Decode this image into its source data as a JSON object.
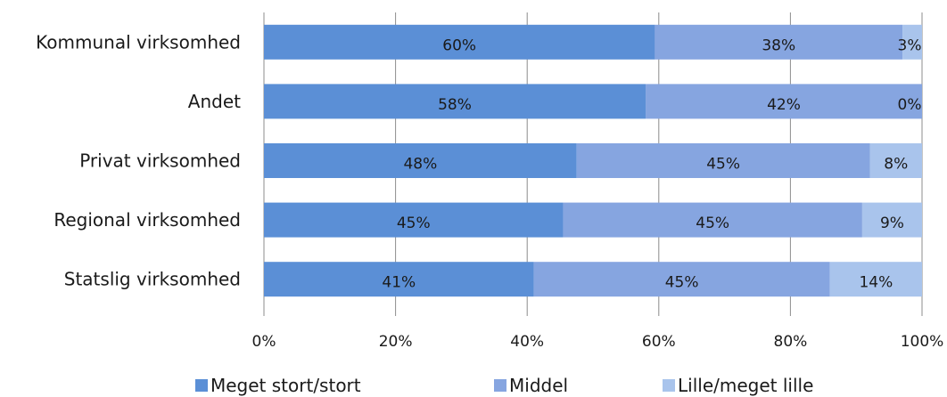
{
  "chart_data": {
    "type": "bar",
    "orientation": "horizontal",
    "stacked": "percent",
    "categories": [
      "Kommunal virksomhed",
      "Andet",
      "Privat virksomhed",
      "Regional virksomhed",
      "Statslig virksomhed"
    ],
    "series": [
      {
        "name": "Meget stort/stort",
        "color": "#5b8fd6",
        "values": [
          60,
          58,
          48,
          45,
          41
        ],
        "labels": [
          "60%",
          "58%",
          "48%",
          "45%",
          "41%"
        ]
      },
      {
        "name": "Middel",
        "color": "#86a5e0",
        "values": [
          38,
          42,
          45,
          45,
          45
        ],
        "labels": [
          "38%",
          "42%",
          "45%",
          "45%",
          "45%"
        ]
      },
      {
        "name": "Lille/meget lille",
        "color": "#a9c4ec",
        "values": [
          3,
          0,
          8,
          9,
          14
        ],
        "labels": [
          "3%",
          "0%",
          "8%",
          "9%",
          "14%"
        ]
      }
    ],
    "xlim": [
      0,
      100
    ],
    "xticks": [
      "0%",
      "20%",
      "40%",
      "60%",
      "80%",
      "100%"
    ],
    "grid": "vertical",
    "legend": "bottom"
  }
}
